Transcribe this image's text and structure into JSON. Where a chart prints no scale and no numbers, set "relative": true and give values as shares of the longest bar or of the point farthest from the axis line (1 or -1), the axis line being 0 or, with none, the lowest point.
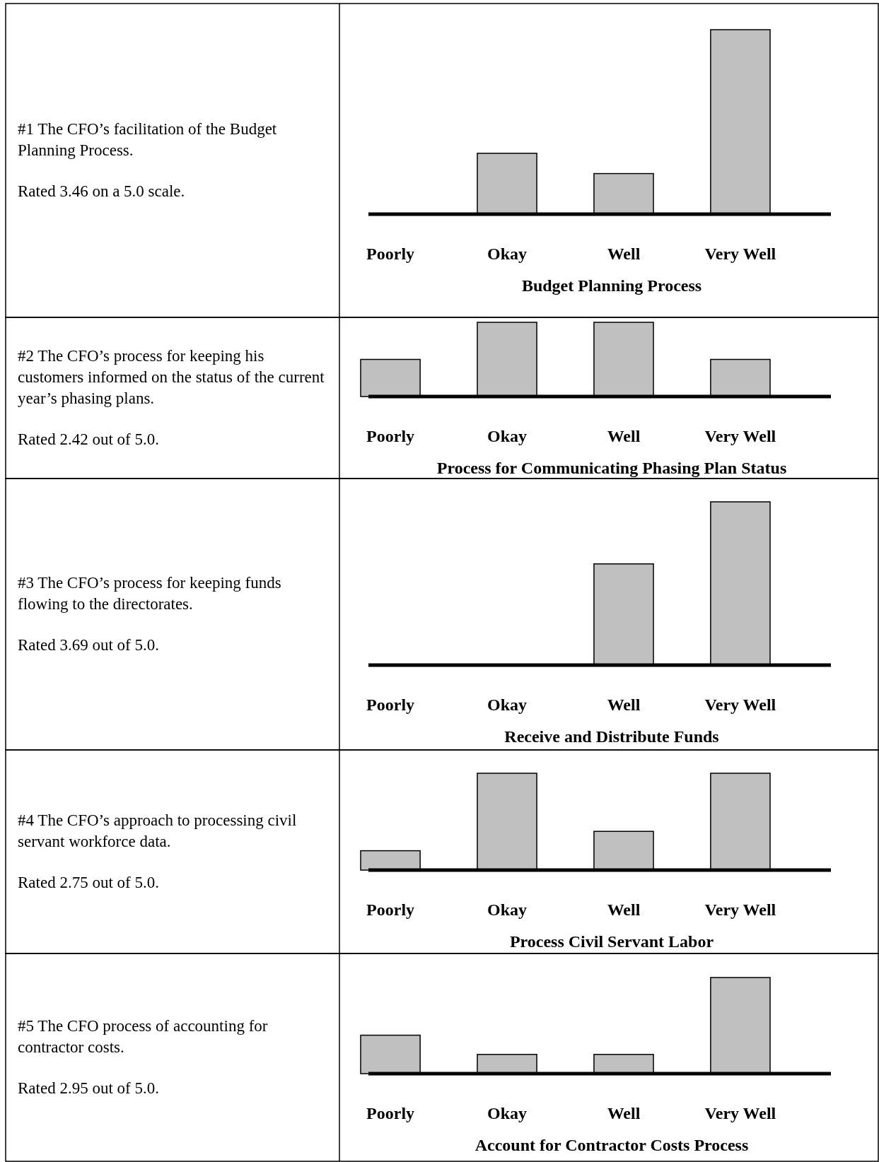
{
  "chart_data": [
    {
      "type": "bar",
      "relative": true,
      "color": "#c0c0c0",
      "categories": [
        "Poorly",
        "Okay",
        "Well",
        "Very Well"
      ],
      "values": [
        0,
        0.33,
        0.22,
        1
      ],
      "xlabel": "Budget Planning Process",
      "annotations": [
        "#1 The CFO’s facilitation of the Budget Planning Process.",
        "Rated 3.46 on a 5.0 scale."
      ]
    },
    {
      "type": "bar",
      "relative": true,
      "color": "#c0c0c0",
      "categories": [
        "Poorly",
        "Okay",
        "Well",
        "Very Well"
      ],
      "values": [
        0.5,
        1,
        1,
        0.5
      ],
      "xlabel": "Process for Communicating Phasing Plan Status",
      "annotations": [
        "#2 The CFO’s process for keeping his customers informed on the status of the current year’s phasing plans.",
        "Rated 2.42 out of 5.0."
      ]
    },
    {
      "type": "bar",
      "relative": true,
      "color": "#c0c0c0",
      "categories": [
        "Poorly",
        "Okay",
        "Well",
        "Very Well"
      ],
      "values": [
        0,
        0,
        0.62,
        1
      ],
      "xlabel": "Receive and Distribute Funds",
      "annotations": [
        "#3 The CFO’s process for keeping funds flowing to the directorates.",
        "Rated 3.69 out of 5.0."
      ]
    },
    {
      "type": "bar",
      "relative": true,
      "color": "#c0c0c0",
      "categories": [
        "Poorly",
        "Okay",
        "Well",
        "Very Well"
      ],
      "values": [
        0.2,
        1,
        0.4,
        1
      ],
      "xlabel": "Process Civil Servant Labor",
      "annotations": [
        "#4 The CFO’s approach to  processing civil servant workforce data.",
        "Rated 2.75 out of 5.0."
      ]
    },
    {
      "type": "bar",
      "relative": true,
      "color": "#c0c0c0",
      "categories": [
        "Poorly",
        "Okay",
        "Well",
        "Very Well"
      ],
      "values": [
        0.4,
        0.2,
        0.2,
        1
      ],
      "xlabel": "Account for Contractor Costs Process",
      "annotations": [
        "#5 The CFO process of accounting for contractor costs.",
        "Rated 2.95 out of 5.0."
      ]
    }
  ]
}
